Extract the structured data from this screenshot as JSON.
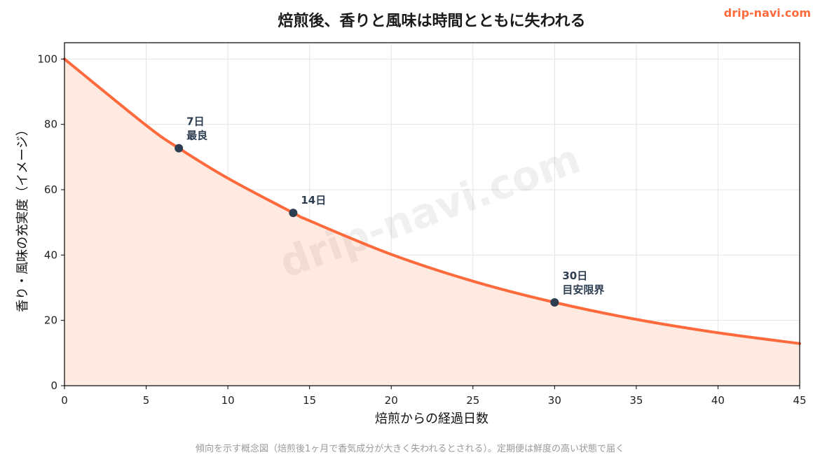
{
  "brand": {
    "text": "drip-navi.com",
    "color": "#ff6a3d"
  },
  "watermark": "drip-navi.com",
  "caption": "傾向を示す概念図（焙煎後1ヶ月で香気成分が大きく失われるとされる）。定期便は鮮度の高い状態で届く",
  "colors": {
    "line": "#ff6a3d",
    "fill": "#ffeae2",
    "point": "#2d3e50"
  },
  "chart_data": {
    "type": "area",
    "title": "焙煎後、香りと風味は時間とともに失われる",
    "xlabel": "焙煎からの経過日数",
    "ylabel": "香り・風味の充実度（イメージ）",
    "xlim": [
      0,
      45
    ],
    "ylim": [
      0,
      105
    ],
    "xticks": [
      0,
      5,
      10,
      15,
      20,
      25,
      30,
      35,
      40,
      45
    ],
    "yticks": [
      0,
      20,
      40,
      60,
      80,
      100
    ],
    "grid": true,
    "series": [
      {
        "x": [
          0,
          5,
          7,
          10,
          14,
          15,
          20,
          25,
          30,
          35,
          40,
          45
        ],
        "values": [
          100,
          79.7,
          72.7,
          63.5,
          52.9,
          50.5,
          40.2,
          32.0,
          25.5,
          20.3,
          16.2,
          12.9
        ]
      }
    ],
    "annotations": [
      {
        "x": 7,
        "y": 72.7,
        "lines": [
          "7日",
          "最良"
        ]
      },
      {
        "x": 14,
        "y": 52.9,
        "lines": [
          "14日"
        ]
      },
      {
        "x": 30,
        "y": 25.5,
        "lines": [
          "30日",
          "目安限界"
        ]
      }
    ]
  }
}
